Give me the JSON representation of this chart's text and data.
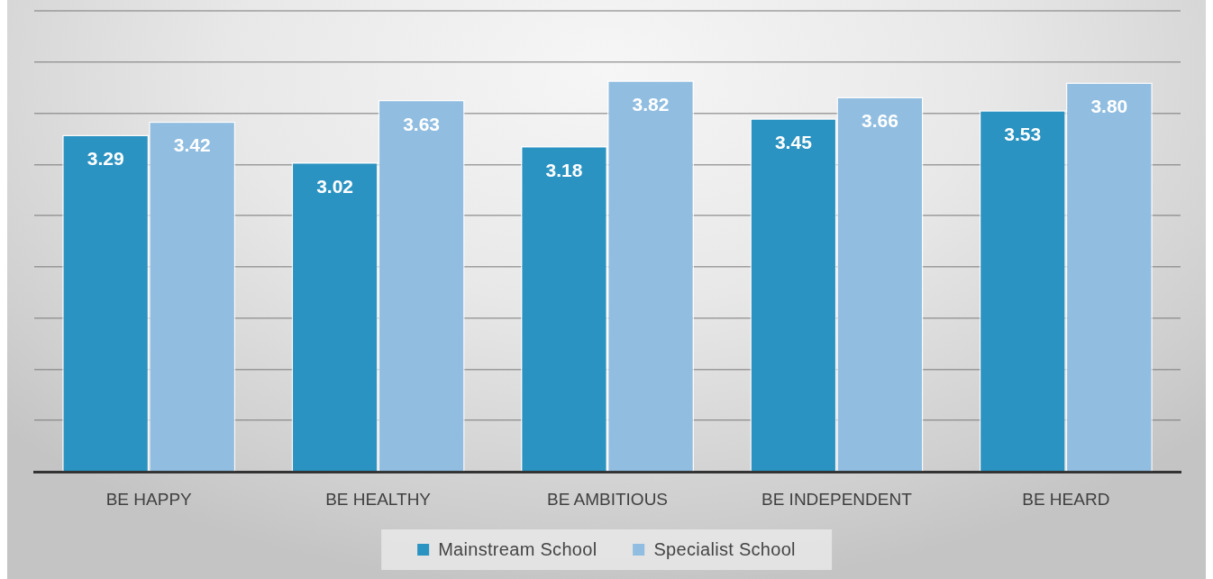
{
  "chart_data": {
    "type": "bar",
    "categories": [
      "BE HAPPY",
      "BE HEALTHY",
      "BE AMBITIOUS",
      "BE INDEPENDENT",
      "BE HEARD"
    ],
    "series": [
      {
        "name": "Mainstream School",
        "color": "#2b93c1",
        "values": [
          3.29,
          3.02,
          3.18,
          3.45,
          3.53
        ],
        "value_labels": [
          "3.29",
          "3.02",
          "3.18",
          "3.45",
          "3.53"
        ]
      },
      {
        "name": "Specialist School",
        "color": "#90bde0",
        "values": [
          3.42,
          3.63,
          3.82,
          3.66,
          3.8
        ],
        "value_labels": [
          "3.42",
          "3.63",
          "3.82",
          "3.66",
          "3.80"
        ]
      }
    ],
    "ylim": [
      0,
      4.5
    ],
    "yticks": [
      {
        "value": 0,
        "label": null
      },
      {
        "value": 0.5,
        "label": null
      },
      {
        "value": 1,
        "label": null
      },
      {
        "value": 1.5,
        "label": null
      },
      {
        "value": 2,
        "label": null
      },
      {
        "value": 2.5,
        "label": null
      },
      {
        "value": 3,
        "label": null
      },
      {
        "value": 3.5,
        "label": null
      },
      {
        "value": 4,
        "label": null
      }
    ],
    "grid": "y",
    "tick_labels": "x",
    "legend": "bottom"
  }
}
